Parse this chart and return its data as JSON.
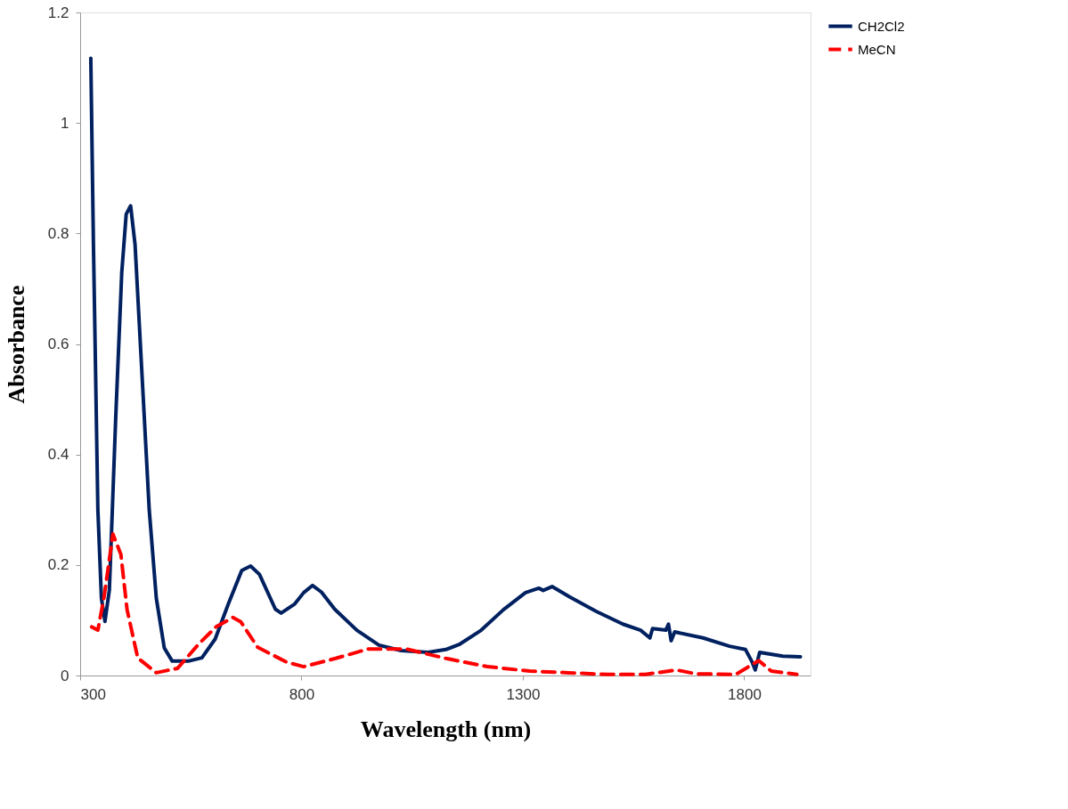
{
  "chart_data": {
    "type": "line",
    "xlabel": "Wavelength (nm)",
    "ylabel": "Absorbance",
    "xlim": [
      300,
      1950
    ],
    "xticks": [
      300,
      800,
      1300,
      1800
    ],
    "ylim": [
      0,
      1.2
    ],
    "yticks": [
      0,
      0.2,
      0.4,
      0.6,
      0.8,
      1,
      1.2
    ],
    "grid": false,
    "legend": "right",
    "marker": "none",
    "series": [
      {
        "name": "CH2Cl2",
        "color": "#002060",
        "line_style": "solid",
        "x": [
          324,
          330,
          340,
          348,
          356,
          366,
          380,
          394,
          404,
          414,
          424,
          440,
          456,
          472,
          490,
          508,
          544,
          575,
          605,
          635,
          665,
          685,
          705,
          741,
          754,
          784,
          805,
          825,
          845,
          875,
          925,
          975,
          1025,
          1086,
          1126,
          1156,
          1206,
          1256,
          1306,
          1336,
          1346,
          1366,
          1406,
          1466,
          1526,
          1566,
          1587,
          1593,
          1623,
          1629,
          1635,
          1643,
          1707,
          1767,
          1803,
          1817,
          1825,
          1835,
          1887,
          1927
        ],
        "values": [
          1.117,
          0.78,
          0.3,
          0.14,
          0.098,
          0.155,
          0.46,
          0.73,
          0.835,
          0.85,
          0.78,
          0.54,
          0.3,
          0.14,
          0.05,
          0.026,
          0.026,
          0.032,
          0.066,
          0.13,
          0.19,
          0.198,
          0.183,
          0.12,
          0.113,
          0.129,
          0.15,
          0.163,
          0.151,
          0.12,
          0.082,
          0.055,
          0.045,
          0.042,
          0.047,
          0.056,
          0.082,
          0.119,
          0.15,
          0.158,
          0.154,
          0.161,
          0.142,
          0.116,
          0.093,
          0.082,
          0.068,
          0.085,
          0.082,
          0.093,
          0.063,
          0.079,
          0.068,
          0.053,
          0.047,
          0.026,
          0.01,
          0.042,
          0.035,
          0.034
        ]
      },
      {
        "name": "MeCN",
        "color": "#ff0000",
        "line_style": "dashed",
        "x": [
          326,
          340,
          354,
          374,
          392,
          406,
          430,
          472,
          520,
          569,
          607,
          645,
          663,
          701,
          767,
          805,
          877,
          951,
          1037,
          1126,
          1220,
          1316,
          1402,
          1490,
          1577,
          1647,
          1691,
          1781,
          1833,
          1861,
          1919
        ],
        "values": [
          0.088,
          0.082,
          0.142,
          0.256,
          0.219,
          0.119,
          0.032,
          0.005,
          0.013,
          0.058,
          0.088,
          0.105,
          0.097,
          0.051,
          0.024,
          0.016,
          0.031,
          0.048,
          0.048,
          0.031,
          0.016,
          0.008,
          0.005,
          0.002,
          0.002,
          0.01,
          0.003,
          0.002,
          0.027,
          0.008,
          0.002
        ]
      }
    ]
  }
}
